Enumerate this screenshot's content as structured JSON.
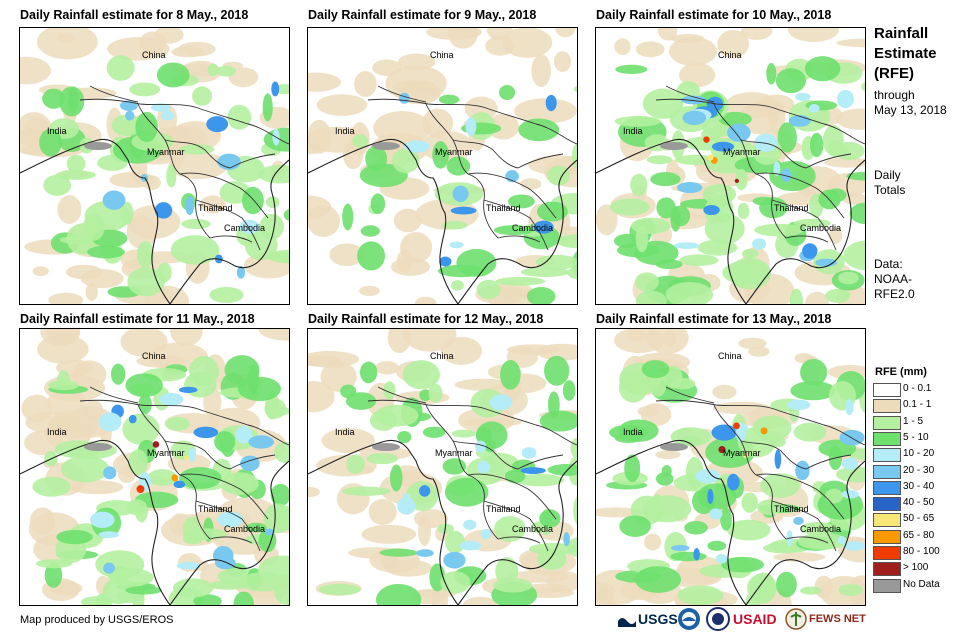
{
  "panels": [
    {
      "title": "Daily Rainfall estimate for 8 May., 2018",
      "labels": {
        "china": "China",
        "india": "India",
        "myanmar": "Myanmar",
        "thailand": "Thailand",
        "cambodia": "Cambodia"
      },
      "coverage": "moderate"
    },
    {
      "title": "Daily Rainfall estimate for 9 May., 2018",
      "labels": {
        "china": "China",
        "india": "India",
        "myanmar": "Myanmar",
        "thailand": "Thailand",
        "cambodia": "Cambodia"
      },
      "coverage": "light"
    },
    {
      "title": "Daily Rainfall estimate for 10 May., 2018",
      "labels": {
        "china": "China",
        "india": "India",
        "myanmar": "Myanmar",
        "thailand": "Thailand",
        "cambodia": "Cambodia"
      },
      "coverage": "heavy"
    },
    {
      "title": "Daily Rainfall estimate for 11 May., 2018",
      "labels": {
        "china": "China",
        "india": "India",
        "myanmar": "Myanmar",
        "thailand": "Thailand",
        "cambodia": "Cambodia"
      },
      "coverage": "heavy"
    },
    {
      "title": "Daily Rainfall estimate for 12 May., 2018",
      "labels": {
        "china": "China",
        "india": "India",
        "myanmar": "Myanmar",
        "thailand": "Thailand",
        "cambodia": "Cambodia"
      },
      "coverage": "moderate"
    },
    {
      "title": "Daily Rainfall estimate for 13 May., 2018",
      "labels": {
        "china": "China",
        "india": "India",
        "myanmar": "Myanmar",
        "thailand": "Thailand",
        "cambodia": "Cambodia"
      },
      "coverage": "heavy"
    }
  ],
  "sidebar": {
    "title_line1": "Rainfall",
    "title_line2": "Estimate",
    "title_line3": "(RFE)",
    "through": "through",
    "date": "May 13, 2018",
    "daily": "Daily",
    "totals": "Totals",
    "data_label": "Data:",
    "source1": "NOAA-",
    "source2": "RFE2.0"
  },
  "legend": {
    "title": "RFE (mm)",
    "items": [
      {
        "label": "0 - 0.1",
        "color": "#ffffff"
      },
      {
        "label": "0.1 - 1",
        "color": "#ecdcbc"
      },
      {
        "label": "1 - 5",
        "color": "#b4f0a0"
      },
      {
        "label": "5 - 10",
        "color": "#6ee06e"
      },
      {
        "label": "10 - 20",
        "color": "#b4ecf8"
      },
      {
        "label": "20 - 30",
        "color": "#78c8f0"
      },
      {
        "label": "30 - 40",
        "color": "#3c96eb"
      },
      {
        "label": "40 - 50",
        "color": "#2864c8"
      },
      {
        "label": "50 - 65",
        "color": "#f8e678"
      },
      {
        "label": "65 - 80",
        "color": "#f89a00"
      },
      {
        "label": "80 - 100",
        "color": "#f03c00"
      },
      {
        "label": "> 100",
        "color": "#a01e1e"
      },
      {
        "label": "No Data",
        "color": "#999999"
      }
    ]
  },
  "footer": {
    "credit": "Map produced by USGS/EROS"
  },
  "logos": {
    "usgs": "USGS",
    "usaid": "USAID",
    "fewsnet": "FEWS NET"
  }
}
